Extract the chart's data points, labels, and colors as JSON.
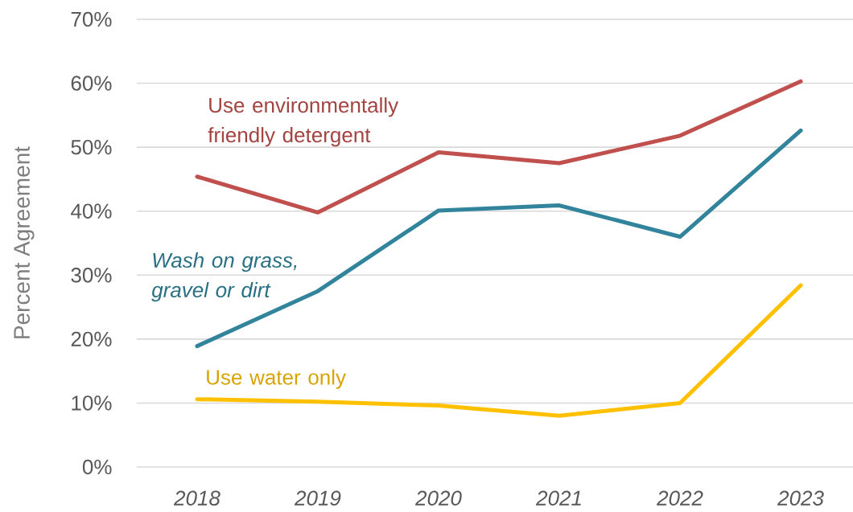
{
  "chart_data": {
    "type": "line",
    "ylabel": "Percent Agreement",
    "categories": [
      "2018",
      "2019",
      "2020",
      "2021",
      "2022",
      "2023"
    ],
    "ylim": [
      0,
      70
    ],
    "yticks": [
      {
        "value": 0,
        "label": "0%"
      },
      {
        "value": 10,
        "label": "10%"
      },
      {
        "value": 20,
        "label": "20%"
      },
      {
        "value": 30,
        "label": "30%"
      },
      {
        "value": 40,
        "label": "40%"
      },
      {
        "value": 50,
        "label": "50%"
      },
      {
        "value": 60,
        "label": "60%"
      },
      {
        "value": 70,
        "label": "70%"
      }
    ],
    "grid": "y",
    "marker": "none",
    "line_style": "solid",
    "series": [
      {
        "name": "Use environmentally friendly detergent",
        "color": "#c0504d",
        "values": [
          45.4,
          39.8,
          49.2,
          47.5,
          51.8,
          60.3
        ]
      },
      {
        "name": "Wash on grass, gravel or dirt",
        "color": "#31849b",
        "values": [
          18.9,
          27.5,
          40.1,
          40.9,
          36.0,
          52.6
        ]
      },
      {
        "name": "Use water only",
        "color": "#ffc000",
        "values": [
          10.6,
          10.2,
          9.6,
          8.0,
          10.0,
          28.4
        ]
      }
    ]
  }
}
